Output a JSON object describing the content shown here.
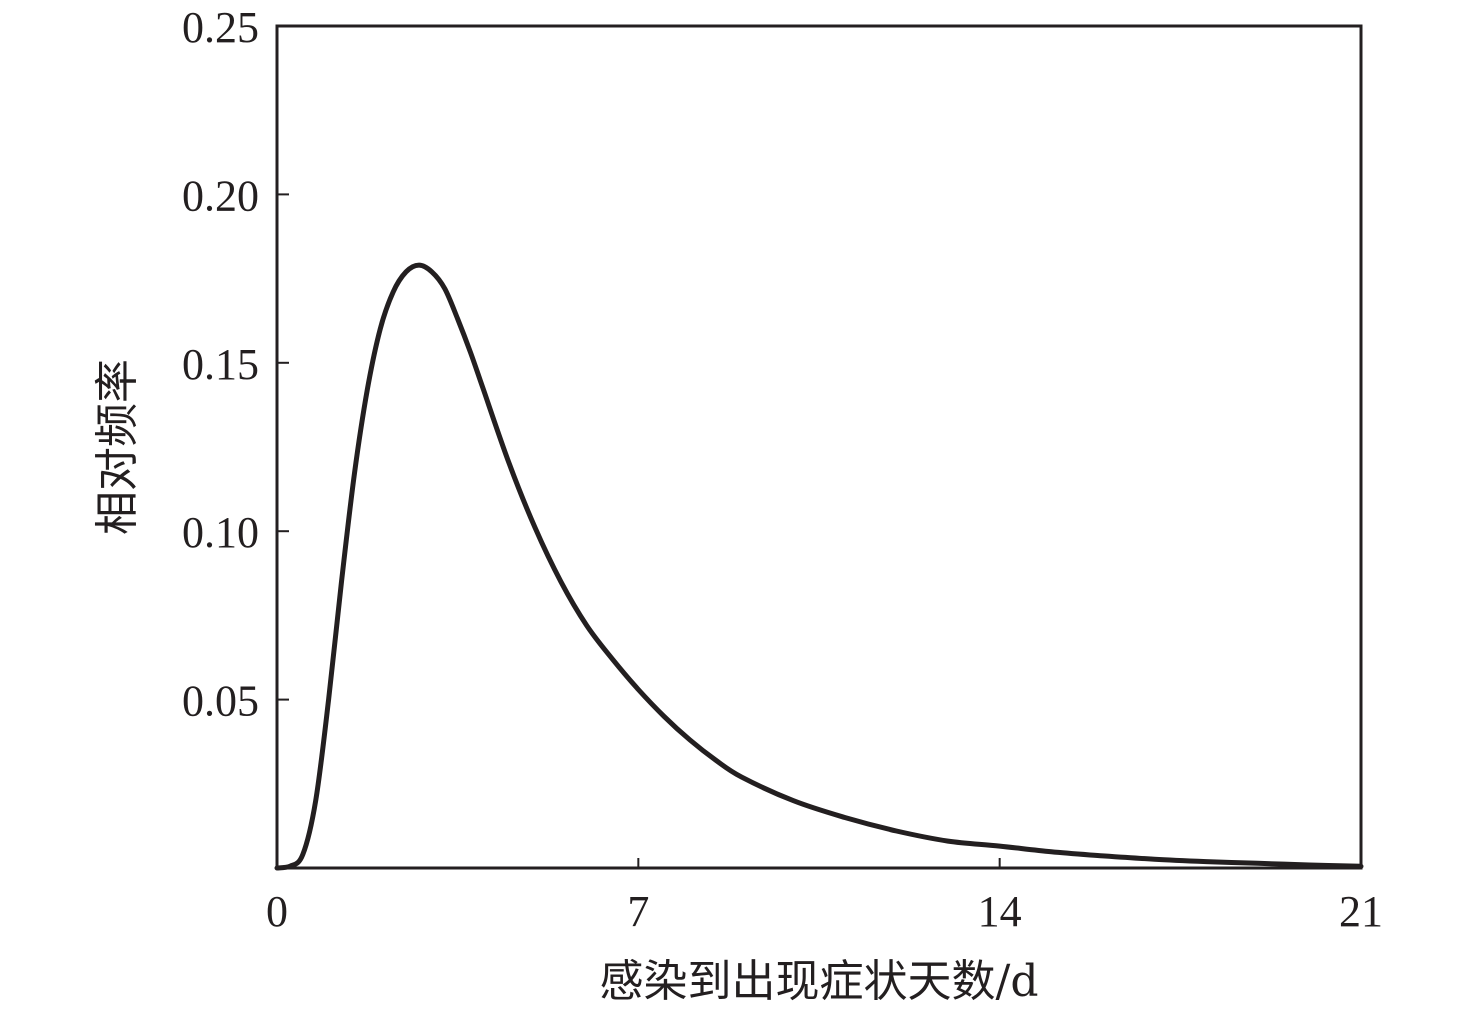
{
  "chart_data": {
    "type": "line",
    "title": "",
    "xlabel": "感染到出现症状天数/d",
    "ylabel": "相对频率",
    "xlim": [
      0,
      21
    ],
    "ylim": [
      0,
      0.25
    ],
    "x_ticks": [
      0,
      7,
      14,
      21
    ],
    "x_tick_labels": [
      "0",
      "7",
      "14",
      "21"
    ],
    "y_ticks": [
      0.05,
      0.1,
      0.15,
      0.2,
      0.25
    ],
    "y_tick_labels": [
      "0.05",
      "0.10",
      "0.15",
      "0.20",
      "0.25"
    ],
    "grid": false,
    "legend": "none",
    "colors": {
      "line": "#231f20",
      "axis": "#231f20"
    },
    "series": [
      {
        "x": [
          0,
          0.25,
          0.5,
          0.75,
          1.0,
          1.25,
          1.5,
          1.75,
          2.0,
          2.25,
          2.5,
          2.75,
          3.0,
          3.25,
          3.5,
          3.75,
          4.0,
          4.5,
          5.0,
          5.5,
          6.0,
          6.5,
          7.0,
          7.5,
          8.0,
          8.5,
          9.0,
          10.0,
          11.0,
          12.0,
          13.0,
          14.0,
          15.0,
          16.0,
          17.0,
          18.0,
          19.0,
          20.0,
          21.0
        ],
        "y": [
          0.0,
          0.0005,
          0.004,
          0.02,
          0.05,
          0.085,
          0.117,
          0.142,
          0.16,
          0.171,
          0.177,
          0.179,
          0.177,
          0.172,
          0.163,
          0.153,
          0.142,
          0.12,
          0.101,
          0.085,
          0.072,
          0.062,
          0.053,
          0.045,
          0.038,
          0.032,
          0.027,
          0.02,
          0.015,
          0.011,
          0.008,
          0.0065,
          0.0048,
          0.0036,
          0.0026,
          0.0019,
          0.0014,
          0.0009,
          0.0005
        ]
      }
    ]
  }
}
